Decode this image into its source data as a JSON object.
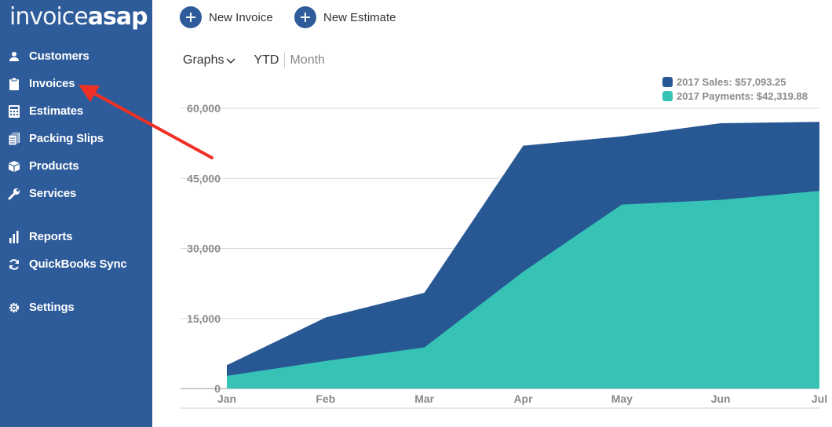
{
  "app": {
    "logo_light": "invoice",
    "logo_bold": "asap"
  },
  "sidebar": {
    "items": [
      {
        "label": "Customers",
        "icon": "user-icon"
      },
      {
        "label": "Invoices",
        "icon": "clipboard-icon"
      },
      {
        "label": "Estimates",
        "icon": "calculator-icon"
      },
      {
        "label": "Packing Slips",
        "icon": "packing-slips-icon"
      },
      {
        "label": "Products",
        "icon": "box-icon"
      },
      {
        "label": "Services",
        "icon": "wrench-icon"
      },
      {
        "label": "Reports",
        "icon": "bar-chart-icon"
      },
      {
        "label": "QuickBooks Sync",
        "icon": "sync-icon"
      },
      {
        "label": "Settings",
        "icon": "gear-icon"
      }
    ],
    "background": "#2e5b9a"
  },
  "actions": {
    "new_invoice": "New Invoice",
    "new_estimate": "New Estimate"
  },
  "toolbar": {
    "graphs": "Graphs",
    "ytd": "YTD",
    "month": "Month"
  },
  "annotation": {
    "arrow_color": "#ee3124"
  },
  "chart_data": {
    "type": "area",
    "categories": [
      "Jan",
      "Feb",
      "Mar",
      "Apr",
      "May",
      "Jun",
      "Jul"
    ],
    "series": [
      {
        "name": "2017 Sales: $57,093.25",
        "color": "#275894",
        "values": [
          5000,
          15200,
          20500,
          52000,
          54000,
          56800,
          57093.25
        ]
      },
      {
        "name": "2017 Payments: $42,319.88",
        "color": "#36c3b5",
        "values": [
          2700,
          5900,
          8800,
          25000,
          39400,
          40400,
          42319.88
        ]
      }
    ],
    "yticks": [
      "0",
      "15,000",
      "30,000",
      "45,000",
      "60,000"
    ],
    "ylim": [
      0,
      60000
    ],
    "grid": true,
    "legend": "top-right"
  }
}
